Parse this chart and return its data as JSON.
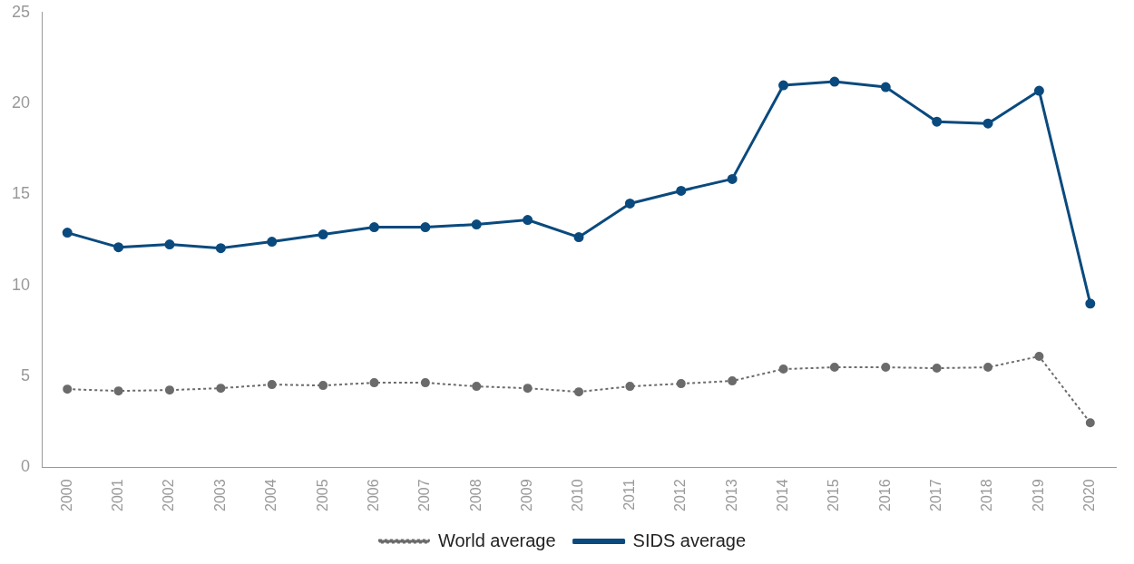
{
  "chart_data": {
    "type": "line",
    "categories": [
      "2000",
      "2001",
      "2002",
      "2003",
      "2004",
      "2005",
      "2006",
      "2007",
      "2008",
      "2009",
      "2010",
      "2011",
      "2012",
      "2013",
      "2014",
      "2015",
      "2016",
      "2017",
      "2018",
      "2019",
      "2020"
    ],
    "series": [
      {
        "name": "World average",
        "color": "#6b6b6b",
        "line_style": "dotted",
        "values": [
          4.3,
          4.2,
          4.25,
          4.35,
          4.55,
          4.5,
          4.65,
          4.65,
          4.45,
          4.35,
          4.15,
          4.45,
          4.6,
          4.75,
          5.4,
          5.5,
          5.5,
          5.45,
          5.5,
          6.1,
          2.45
        ]
      },
      {
        "name": "SIDS average",
        "color": "#0a4a7e",
        "line_style": "solid",
        "values": [
          12.9,
          12.1,
          12.25,
          12.05,
          12.4,
          12.8,
          13.2,
          13.2,
          13.35,
          13.6,
          12.65,
          14.5,
          15.2,
          15.85,
          21.0,
          21.2,
          20.9,
          19.0,
          18.9,
          20.7,
          9.0
        ]
      }
    ],
    "ylim": [
      0,
      25
    ],
    "yticks": [
      0,
      5,
      10,
      15,
      20,
      25
    ],
    "grid": false,
    "legend": "bottom",
    "marker": "circle"
  }
}
